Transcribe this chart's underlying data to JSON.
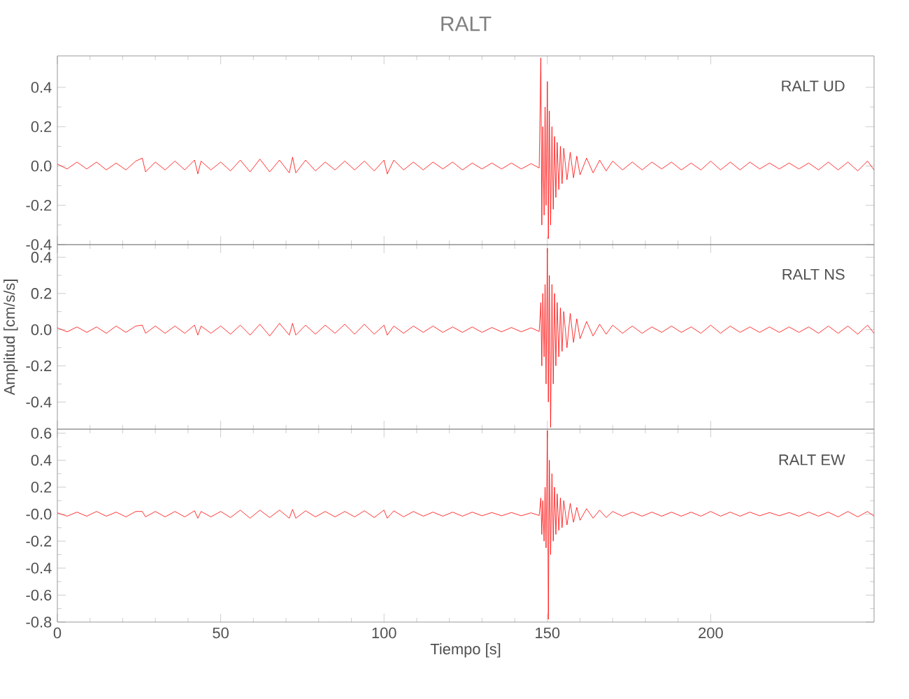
{
  "chart_data": [
    {
      "type": "line",
      "title": "RALT",
      "annotations": [
        "RALT UD"
      ],
      "xlim": [
        0,
        250
      ],
      "xticks": [
        0,
        50,
        100,
        150,
        200
      ],
      "tick_labels": "y",
      "ylim": [
        -0.4,
        0.56
      ],
      "yticks": [
        {
          "value": -0.4,
          "label": "-0.4"
        },
        {
          "value": -0.2,
          "label": "-0.2"
        },
        {
          "value": 0,
          "label": "0.0"
        },
        {
          "value": 0.2,
          "label": "0.2"
        },
        {
          "value": 0.4,
          "label": "0.4"
        }
      ],
      "x": [
        0,
        3,
        6,
        9,
        12,
        15,
        18,
        21,
        24,
        26,
        27,
        30,
        33,
        36,
        39,
        42,
        43,
        44,
        47,
        50,
        53,
        56,
        59,
        62,
        65,
        68,
        71,
        72,
        73,
        76,
        79,
        82,
        85,
        88,
        91,
        94,
        97,
        100,
        101,
        103,
        106,
        109,
        112,
        115,
        118,
        121,
        124,
        127,
        130,
        133,
        136,
        139,
        142,
        145,
        147.5,
        148,
        148.3,
        148.6,
        149,
        149.3,
        149.6,
        150,
        150.3,
        150.6,
        151,
        151.4,
        151.8,
        152.2,
        152.6,
        153,
        153.5,
        154,
        154.5,
        155,
        156,
        157,
        158,
        159,
        160,
        162,
        164,
        166,
        168,
        170,
        173,
        176,
        179,
        182,
        185,
        188,
        191,
        194,
        197,
        200,
        203,
        206,
        209,
        212,
        215,
        218,
        221,
        224,
        227,
        230,
        233,
        236,
        239,
        242,
        245,
        248,
        250
      ],
      "series": [
        {
          "color": "#ff0000",
          "values": [
            0.01,
            -0.015,
            0.02,
            -0.015,
            0.02,
            -0.02,
            0.015,
            -0.02,
            0.025,
            0.04,
            -0.03,
            0.02,
            -0.02,
            0.025,
            -0.02,
            0.03,
            -0.04,
            0.025,
            -0.02,
            0.02,
            -0.025,
            0.03,
            -0.03,
            0.035,
            -0.03,
            0.03,
            -0.035,
            0.045,
            -0.035,
            0.03,
            -0.025,
            0.02,
            -0.02,
            0.025,
            -0.02,
            0.025,
            -0.025,
            0.03,
            -0.04,
            0.03,
            -0.02,
            0.02,
            -0.02,
            0.02,
            -0.015,
            0.02,
            -0.02,
            0.015,
            -0.015,
            0.015,
            -0.015,
            0.015,
            -0.015,
            0.012,
            -0.01,
            0.55,
            -0.3,
            0.2,
            -0.25,
            0.3,
            -0.2,
            0.43,
            -0.37,
            0.28,
            -0.3,
            0.2,
            -0.22,
            0.15,
            -0.16,
            0.12,
            -0.12,
            0.1,
            -0.09,
            0.09,
            -0.07,
            0.07,
            -0.06,
            0.05,
            -0.045,
            0.04,
            -0.035,
            0.03,
            -0.025,
            0.025,
            -0.02,
            0.02,
            -0.02,
            0.02,
            -0.015,
            0.02,
            -0.02,
            0.015,
            -0.02,
            0.025,
            -0.02,
            0.02,
            -0.02,
            0.02,
            -0.015,
            0.015,
            -0.015,
            0.015,
            -0.015,
            0.015,
            -0.02,
            0.02,
            -0.02,
            0.02,
            -0.025,
            0.025,
            -0.02
          ]
        }
      ]
    },
    {
      "type": "line",
      "ylabel": "Amplitud [cm/s/s]",
      "annotations": [
        "RALT NS"
      ],
      "xlim": [
        0,
        250
      ],
      "xticks": [
        0,
        50,
        100,
        150,
        200
      ],
      "tick_labels": "y",
      "ylim": [
        -0.55,
        0.47
      ],
      "yticks": [
        {
          "value": -0.4,
          "label": "-0.4"
        },
        {
          "value": -0.2,
          "label": "-0.2"
        },
        {
          "value": 0,
          "label": "0.0"
        },
        {
          "value": 0.2,
          "label": "0.2"
        },
        {
          "value": 0.4,
          "label": "0.4"
        }
      ],
      "x": [
        0,
        3,
        6,
        9,
        12,
        15,
        18,
        21,
        24,
        26,
        27,
        30,
        33,
        36,
        39,
        42,
        43,
        44,
        47,
        50,
        53,
        56,
        59,
        62,
        65,
        68,
        71,
        72,
        73,
        76,
        79,
        82,
        85,
        88,
        91,
        94,
        97,
        100,
        101,
        103,
        106,
        109,
        112,
        115,
        118,
        121,
        124,
        127,
        130,
        133,
        136,
        139,
        142,
        145,
        147.5,
        148,
        148.3,
        148.6,
        149,
        149.3,
        149.6,
        150,
        150.3,
        150.6,
        151,
        151.4,
        151.8,
        152.2,
        152.6,
        153,
        153.5,
        154,
        154.5,
        155,
        156,
        157,
        158,
        159,
        160,
        162,
        164,
        166,
        168,
        170,
        173,
        176,
        179,
        182,
        185,
        188,
        191,
        194,
        197,
        200,
        203,
        206,
        209,
        212,
        215,
        218,
        221,
        224,
        227,
        230,
        233,
        236,
        239,
        242,
        245,
        248,
        250
      ],
      "series": [
        {
          "color": "#ff0000",
          "values": [
            0.01,
            -0.012,
            0.015,
            -0.015,
            0.015,
            -0.02,
            0.02,
            -0.015,
            0.02,
            0.025,
            -0.02,
            0.02,
            -0.02,
            0.02,
            -0.02,
            0.025,
            -0.03,
            0.02,
            -0.02,
            0.02,
            -0.025,
            0.025,
            -0.03,
            0.03,
            -0.035,
            0.035,
            -0.03,
            0.035,
            -0.03,
            0.025,
            -0.025,
            0.025,
            -0.02,
            0.03,
            -0.025,
            0.03,
            -0.025,
            0.025,
            -0.03,
            0.02,
            -0.02,
            0.02,
            -0.015,
            0.02,
            -0.015,
            0.015,
            -0.015,
            0.015,
            -0.015,
            0.012,
            -0.012,
            0.012,
            -0.012,
            0.01,
            -0.01,
            0.15,
            -0.2,
            0.2,
            -0.15,
            0.25,
            -0.3,
            0.45,
            -0.4,
            0.3,
            -0.54,
            0.25,
            -0.3,
            0.2,
            -0.2,
            0.15,
            -0.15,
            0.12,
            -0.12,
            0.1,
            -0.1,
            0.09,
            -0.07,
            0.06,
            -0.05,
            0.045,
            -0.035,
            0.03,
            -0.025,
            0.025,
            -0.02,
            0.02,
            -0.02,
            0.015,
            -0.015,
            0.02,
            -0.015,
            0.015,
            -0.02,
            0.025,
            -0.02,
            0.02,
            -0.015,
            0.015,
            -0.015,
            0.015,
            -0.015,
            0.015,
            -0.015,
            0.015,
            -0.02,
            0.02,
            -0.02,
            0.02,
            -0.025,
            0.025,
            -0.02
          ]
        }
      ]
    },
    {
      "type": "line",
      "xlabel": "Tiempo [s]",
      "annotations": [
        "RALT EW"
      ],
      "xlim": [
        0,
        250
      ],
      "xticks": [
        0,
        50,
        100,
        150,
        200
      ],
      "ylim": [
        -0.8,
        0.63
      ],
      "yticks": [
        {
          "value": -0.8,
          "label": "-0.8"
        },
        {
          "value": -0.6,
          "label": "-0.6"
        },
        {
          "value": -0.4,
          "label": "-0.4"
        },
        {
          "value": -0.2,
          "label": "-0.2"
        },
        {
          "value": 0,
          "label": "-0.0"
        },
        {
          "value": 0.2,
          "label": "0.2"
        },
        {
          "value": 0.4,
          "label": "0.4"
        },
        {
          "value": 0.6,
          "label": "0.6"
        }
      ],
      "x": [
        0,
        3,
        6,
        9,
        12,
        15,
        18,
        21,
        24,
        26,
        27,
        30,
        33,
        36,
        39,
        42,
        43,
        44,
        47,
        50,
        53,
        56,
        59,
        62,
        65,
        68,
        71,
        72,
        73,
        76,
        79,
        82,
        85,
        88,
        91,
        94,
        97,
        100,
        101,
        103,
        106,
        109,
        112,
        115,
        118,
        121,
        124,
        127,
        130,
        133,
        136,
        139,
        142,
        145,
        147.5,
        148,
        148.3,
        148.6,
        149,
        149.3,
        149.6,
        150,
        150.3,
        150.6,
        151,
        151.4,
        151.8,
        152.2,
        152.6,
        153,
        153.5,
        154,
        154.5,
        155,
        156,
        157,
        158,
        159,
        160,
        162,
        164,
        166,
        168,
        170,
        173,
        176,
        179,
        182,
        185,
        188,
        191,
        194,
        197,
        200,
        203,
        206,
        209,
        212,
        215,
        218,
        221,
        224,
        227,
        230,
        233,
        236,
        239,
        242,
        245,
        248,
        250
      ],
      "series": [
        {
          "color": "#ff0000",
          "values": [
            0.01,
            -0.015,
            0.015,
            -0.015,
            0.02,
            -0.015,
            0.015,
            -0.02,
            0.02,
            0.02,
            -0.02,
            0.02,
            -0.02,
            0.02,
            -0.02,
            0.025,
            -0.03,
            0.02,
            -0.02,
            0.02,
            -0.025,
            0.03,
            -0.03,
            0.03,
            -0.025,
            0.03,
            -0.03,
            0.035,
            -0.03,
            0.025,
            -0.02,
            0.02,
            -0.02,
            0.02,
            -0.02,
            0.025,
            -0.025,
            0.03,
            -0.03,
            0.025,
            -0.02,
            0.02,
            -0.015,
            0.015,
            -0.015,
            0.015,
            -0.015,
            0.015,
            -0.012,
            0.012,
            -0.012,
            0.012,
            -0.012,
            0.01,
            -0.01,
            0.12,
            -0.15,
            0.1,
            -0.2,
            0.2,
            -0.25,
            0.62,
            -0.78,
            0.4,
            -0.3,
            0.3,
            -0.2,
            0.2,
            -0.15,
            0.15,
            -0.12,
            0.12,
            -0.1,
            0.1,
            -0.08,
            0.08,
            -0.06,
            0.05,
            -0.045,
            0.04,
            -0.03,
            0.03,
            -0.025,
            0.02,
            -0.015,
            0.015,
            -0.015,
            0.015,
            -0.015,
            0.015,
            -0.015,
            0.015,
            -0.015,
            0.02,
            -0.015,
            0.015,
            -0.015,
            0.015,
            -0.012,
            0.012,
            -0.012,
            0.012,
            -0.015,
            0.015,
            -0.015,
            0.015,
            -0.02,
            0.02,
            -0.02,
            0.02,
            -0.015
          ]
        }
      ]
    }
  ]
}
